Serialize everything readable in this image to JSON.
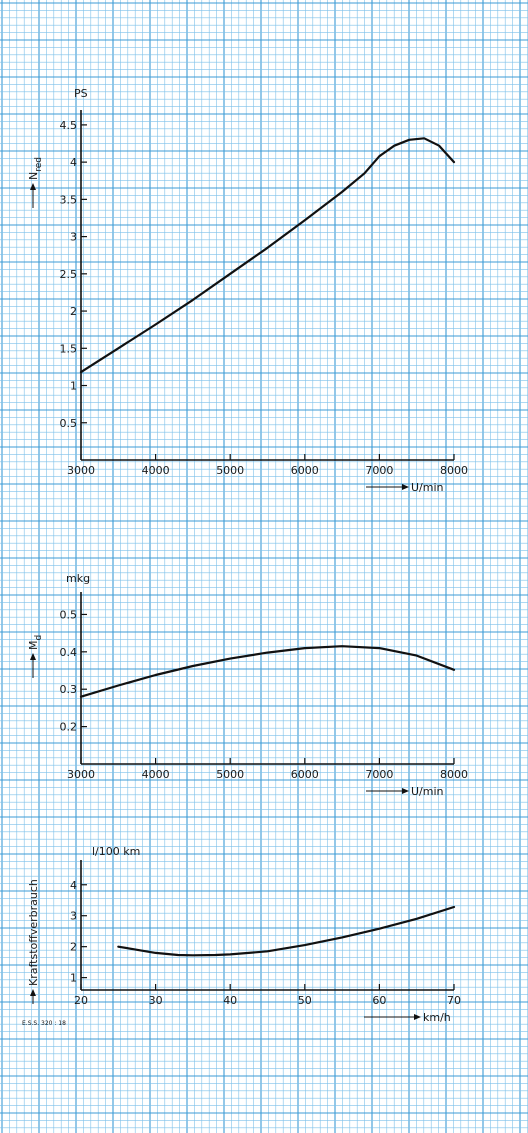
{
  "colors": {
    "paper": "#ffffff",
    "grid_minor": "#7ec1ea",
    "grid_major": "#3d9bd6",
    "ink": "#111111"
  },
  "footer_code": "E.S.S. 320 : 18",
  "chart_data": [
    {
      "type": "line",
      "title": "",
      "ylabel": "N",
      "ylabel_sub": "red",
      "yunit": "PS",
      "xlabel": "U/min",
      "xlim": [
        3000,
        8000
      ],
      "ylim": [
        0,
        4.7
      ],
      "xticks": [
        3000,
        4000,
        5000,
        6000,
        7000,
        8000
      ],
      "yticks": [
        0.5,
        1,
        1.5,
        2,
        2.5,
        3,
        3.5,
        4,
        4.5
      ],
      "ytick_labels": [
        "0.5",
        "1",
        "1.5",
        "2",
        "2.5",
        "3",
        "3.5",
        "4",
        "4.5"
      ],
      "grid": true,
      "series": [
        {
          "x": [
            3000,
            3500,
            4000,
            4500,
            5000,
            5500,
            6000,
            6500,
            6800,
            7000,
            7200,
            7400,
            7600,
            7800,
            8000
          ],
          "y": [
            1.18,
            1.5,
            1.82,
            2.15,
            2.5,
            2.85,
            3.22,
            3.6,
            3.85,
            4.08,
            4.22,
            4.3,
            4.32,
            4.22,
            4.0
          ]
        }
      ]
    },
    {
      "type": "line",
      "title": "",
      "ylabel": "M",
      "ylabel_sub": "d",
      "yunit": "mkg",
      "xlabel": "U/min",
      "xlim": [
        3000,
        8000
      ],
      "ylim": [
        0.1,
        0.56
      ],
      "xticks": [
        3000,
        4000,
        5000,
        6000,
        7000,
        8000
      ],
      "yticks": [
        0.2,
        0.3,
        0.4,
        0.5
      ],
      "ytick_labels": [
        "0.2",
        "0.3",
        "0.4",
        "0.5"
      ],
      "grid": true,
      "series": [
        {
          "x": [
            3000,
            3500,
            4000,
            4500,
            5000,
            5500,
            6000,
            6500,
            7000,
            7500,
            8000
          ],
          "y": [
            0.28,
            0.31,
            0.338,
            0.362,
            0.382,
            0.398,
            0.41,
            0.415,
            0.41,
            0.39,
            0.352
          ]
        }
      ]
    },
    {
      "type": "line",
      "title": "",
      "ylabel": "Kraftstoffverbrauch",
      "yunit": "l/100 km",
      "xlabel": "km/h",
      "xlim": [
        20,
        70
      ],
      "ylim": [
        0.6,
        4.8
      ],
      "xticks": [
        20,
        30,
        40,
        50,
        60,
        70
      ],
      "yticks": [
        1,
        2,
        3,
        4
      ],
      "ytick_labels": [
        "1",
        "2",
        "3",
        "4"
      ],
      "grid": true,
      "series": [
        {
          "x": [
            25,
            28,
            30,
            33,
            35,
            38,
            40,
            45,
            50,
            55,
            60,
            65,
            70
          ],
          "y": [
            2.0,
            1.88,
            1.8,
            1.73,
            1.72,
            1.73,
            1.75,
            1.85,
            2.05,
            2.3,
            2.58,
            2.9,
            3.28
          ]
        }
      ]
    }
  ]
}
